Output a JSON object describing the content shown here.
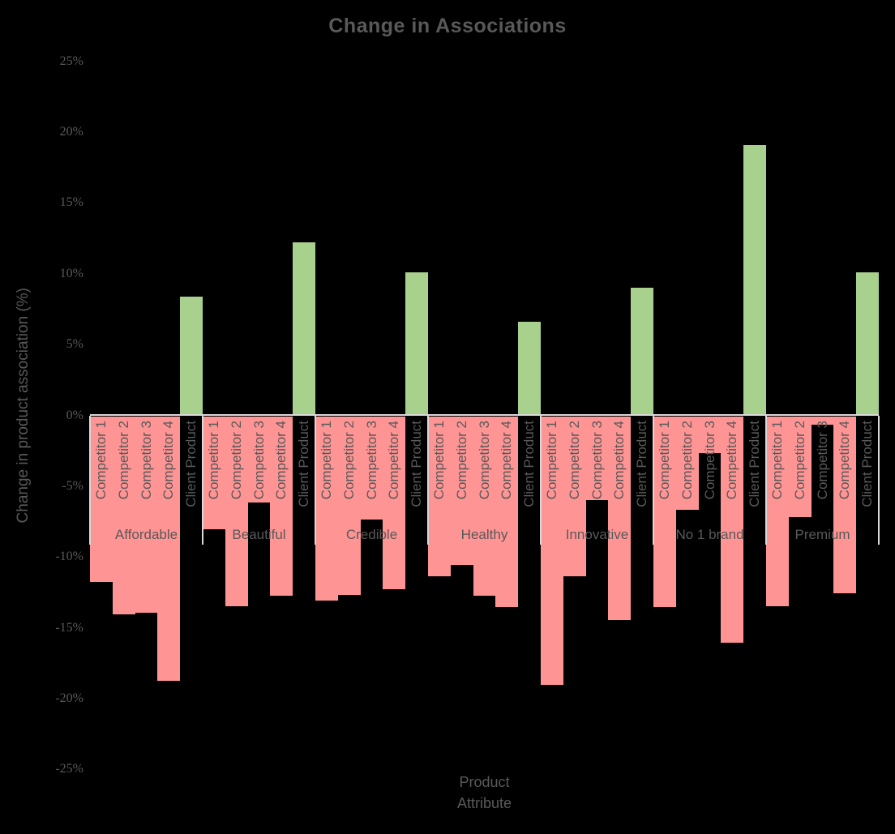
{
  "chart_data": {
    "type": "bar",
    "title": "Change in Associations",
    "ylabel": "Change in product association (%)",
    "xlabel_lines": [
      "Product",
      "Attribute"
    ],
    "ylim": [
      -25,
      25
    ],
    "ytick_labels": [
      "25%",
      "20%",
      "15%",
      "10%",
      "5%",
      "0%",
      "-5%",
      "-10%",
      "-15%",
      "-20%",
      "-25%"
    ],
    "series_labels": [
      "Competitor 1",
      "Competitor 2",
      "Competitor 3",
      "Competitor 4",
      "Client Product"
    ],
    "categories": [
      "Affordable",
      "Beautiful",
      "Credible",
      "Healthy",
      "Innovative",
      "No 1 brand",
      "Premium"
    ],
    "groups": [
      {
        "category": "Affordable",
        "values": [
          -11.7,
          -14.0,
          -13.9,
          -18.7,
          8.4
        ]
      },
      {
        "category": "Beautiful",
        "values": [
          -8.0,
          -13.4,
          -6.1,
          -12.7,
          12.2
        ]
      },
      {
        "category": "Credible",
        "values": [
          -13.0,
          -12.6,
          -7.3,
          -12.2,
          10.1
        ]
      },
      {
        "category": "Healthy",
        "values": [
          -11.3,
          -10.5,
          -12.7,
          -13.5,
          6.6
        ]
      },
      {
        "category": "Innovative",
        "values": [
          -19.0,
          -11.3,
          -5.9,
          -14.4,
          9.0
        ]
      },
      {
        "category": "No 1 brand",
        "values": [
          -13.5,
          -6.6,
          -2.6,
          -16.0,
          19.1
        ]
      },
      {
        "category": "Premium",
        "values": [
          -13.4,
          -7.1,
          -0.6,
          -12.5,
          10.1
        ]
      }
    ],
    "legend": "none",
    "grid": "off",
    "colors": {
      "background": "#000000",
      "negative_bar": "#ff9494",
      "positive_bar": "#a9d18e",
      "axis_line": "#d9d9d9",
      "text": "#595959"
    }
  }
}
